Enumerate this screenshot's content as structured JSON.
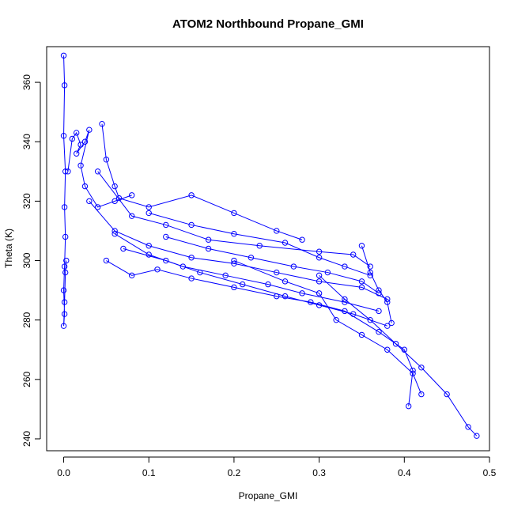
{
  "chart_data": {
    "type": "line",
    "title": "ATOM2 Northbound Propane_GMI",
    "xlabel": "Propane_GMI",
    "ylabel": "Theta (K)",
    "xlim": [
      -0.02,
      0.5
    ],
    "ylim": [
      236,
      372
    ],
    "xticks": [
      0.0,
      0.1,
      0.2,
      0.3,
      0.4,
      0.5
    ],
    "xtick_labels": [
      "0.0",
      "0.1",
      "0.2",
      "0.3",
      "0.4",
      "0.5"
    ],
    "yticks": [
      240,
      260,
      280,
      300,
      320,
      340,
      360
    ],
    "ytick_labels": [
      "240",
      "260",
      "280",
      "300",
      "320",
      "340",
      "360"
    ],
    "grid": false,
    "marker": "open-circle",
    "color": "#0000ff",
    "series": [
      {
        "name": "",
        "points": [
          [
            0.0,
            369
          ],
          [
            0.001,
            359
          ],
          [
            0.0,
            342
          ],
          [
            0.002,
            330
          ],
          [
            0.001,
            318
          ],
          [
            0.002,
            308
          ],
          [
            0.001,
            298
          ],
          [
            0.0,
            290
          ],
          [
            0.001,
            282
          ],
          [
            0.0,
            278
          ],
          [
            0.001,
            286
          ],
          [
            0.002,
            296
          ],
          [
            0.003,
            300
          ]
        ]
      },
      {
        "name": "",
        "points": [
          [
            0.005,
            330
          ],
          [
            0.01,
            341
          ],
          [
            0.015,
            343
          ],
          [
            0.02,
            339
          ],
          [
            0.015,
            336
          ],
          [
            0.025,
            340
          ],
          [
            0.03,
            344
          ],
          [
            0.02,
            332
          ],
          [
            0.025,
            325
          ],
          [
            0.04,
            318
          ],
          [
            0.06,
            320
          ],
          [
            0.08,
            322
          ]
        ]
      },
      {
        "name": "",
        "points": [
          [
            0.045,
            346
          ],
          [
            0.05,
            334
          ],
          [
            0.06,
            325
          ],
          [
            0.065,
            321
          ],
          [
            0.1,
            318
          ],
          [
            0.15,
            322
          ],
          [
            0.2,
            316
          ],
          [
            0.25,
            310
          ],
          [
            0.28,
            307
          ]
        ]
      },
      {
        "name": "",
        "points": [
          [
            0.04,
            330
          ],
          [
            0.08,
            315
          ],
          [
            0.12,
            312
          ],
          [
            0.17,
            307
          ],
          [
            0.23,
            305
          ],
          [
            0.3,
            303
          ],
          [
            0.34,
            302
          ],
          [
            0.36,
            298
          ]
        ]
      },
      {
        "name": "",
        "points": [
          [
            0.03,
            320
          ],
          [
            0.06,
            310
          ],
          [
            0.1,
            305
          ],
          [
            0.15,
            301
          ],
          [
            0.2,
            299
          ],
          [
            0.25,
            296
          ],
          [
            0.3,
            293
          ],
          [
            0.35,
            291
          ],
          [
            0.38,
            287
          ]
        ]
      },
      {
        "name": "",
        "points": [
          [
            0.06,
            309
          ],
          [
            0.1,
            302
          ],
          [
            0.14,
            298
          ],
          [
            0.19,
            295
          ],
          [
            0.24,
            292
          ],
          [
            0.28,
            289
          ],
          [
            0.33,
            286
          ],
          [
            0.37,
            283
          ]
        ]
      },
      {
        "name": "",
        "points": [
          [
            0.07,
            304
          ],
          [
            0.12,
            300
          ],
          [
            0.16,
            296
          ],
          [
            0.21,
            292
          ],
          [
            0.26,
            288
          ],
          [
            0.3,
            285
          ],
          [
            0.34,
            282
          ],
          [
            0.38,
            278
          ]
        ]
      },
      {
        "name": "",
        "points": [
          [
            0.05,
            300
          ],
          [
            0.08,
            295
          ],
          [
            0.11,
            297
          ],
          [
            0.15,
            294
          ],
          [
            0.2,
            291
          ],
          [
            0.25,
            288
          ],
          [
            0.29,
            286
          ],
          [
            0.33,
            283
          ],
          [
            0.37,
            276
          ],
          [
            0.4,
            270
          ],
          [
            0.41,
            263
          ],
          [
            0.405,
            251
          ]
        ]
      },
      {
        "name": "",
        "points": [
          [
            0.2,
            300
          ],
          [
            0.26,
            293
          ],
          [
            0.3,
            289
          ],
          [
            0.32,
            280
          ],
          [
            0.35,
            275
          ],
          [
            0.38,
            270
          ],
          [
            0.41,
            262
          ],
          [
            0.42,
            255
          ]
        ]
      },
      {
        "name": "",
        "points": [
          [
            0.3,
            295
          ],
          [
            0.33,
            287
          ],
          [
            0.36,
            280
          ],
          [
            0.39,
            272
          ],
          [
            0.42,
            264
          ],
          [
            0.45,
            255
          ],
          [
            0.475,
            244
          ],
          [
            0.485,
            241
          ]
        ]
      },
      {
        "name": "",
        "points": [
          [
            0.35,
            305
          ],
          [
            0.36,
            296
          ],
          [
            0.37,
            290
          ],
          [
            0.38,
            286
          ],
          [
            0.385,
            279
          ]
        ]
      },
      {
        "name": "",
        "points": [
          [
            0.1,
            316
          ],
          [
            0.15,
            312
          ],
          [
            0.2,
            309
          ],
          [
            0.26,
            306
          ],
          [
            0.3,
            301
          ],
          [
            0.33,
            298
          ],
          [
            0.36,
            295
          ]
        ]
      },
      {
        "name": "",
        "points": [
          [
            0.12,
            308
          ],
          [
            0.17,
            304
          ],
          [
            0.22,
            301
          ],
          [
            0.27,
            298
          ],
          [
            0.31,
            296
          ],
          [
            0.35,
            293
          ],
          [
            0.37,
            289
          ]
        ]
      }
    ]
  }
}
